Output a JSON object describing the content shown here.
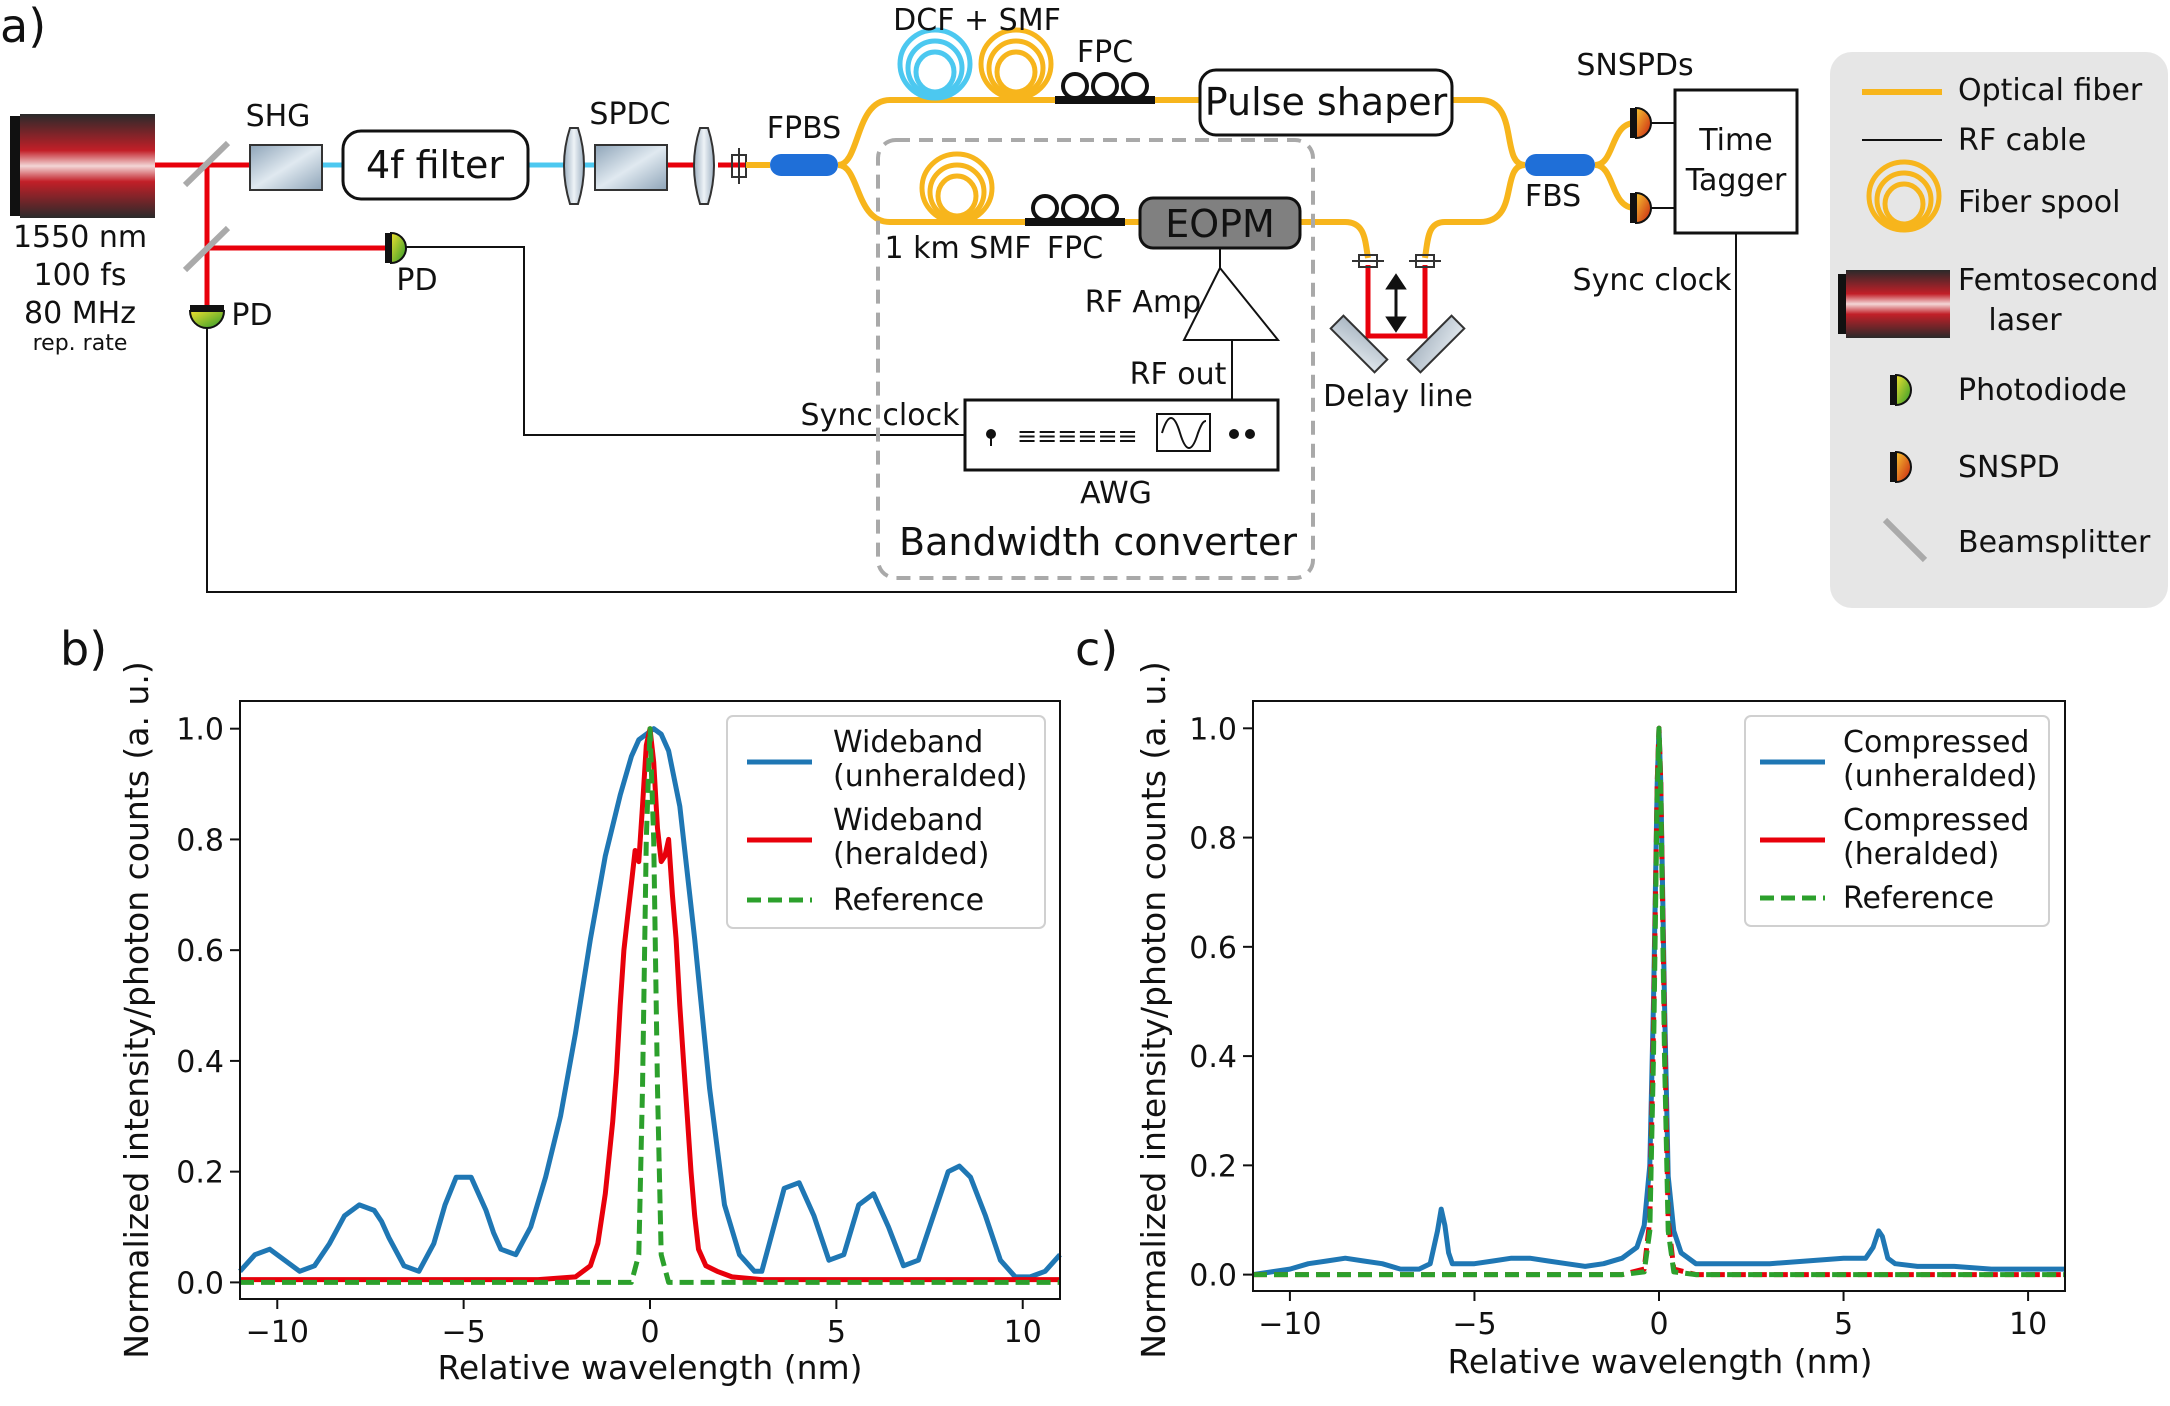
{
  "panel_a": {
    "letter": "a)",
    "laser_specs": [
      "1550 nm",
      "100 fs",
      "80 MHz"
    ],
    "rep_rate": "rep. rate",
    "shg": "SHG",
    "filter4f": "4f filter",
    "spdc": "SPDC",
    "fpbs": "FPBS",
    "pd1": "PD",
    "pd2": "PD",
    "dcf_smf": "DCF + SMF",
    "fpc_top": "FPC",
    "pulse_shaper": "Pulse shaper",
    "km_smf": "1 km SMF",
    "fpc_bottom": "FPC",
    "eopm": "EOPM",
    "rf_amp": "RF Amp",
    "rf_out": "RF out",
    "sync_clock_awg": "Sync clock",
    "awg": "AWG",
    "awg_display": "≡≡≡≡≡≡",
    "bandwidth_converter": "Bandwidth converter",
    "delay_line": "Delay line",
    "fbs": "FBS",
    "snspds": "SNSPDs",
    "time_tagger": [
      "Time",
      "Tagger"
    ],
    "sync_clock_tt": "Sync clock",
    "legend": {
      "optical_fiber": "Optical fiber",
      "rf_cable": "RF cable",
      "fiber_spool": "Fiber spool",
      "femtosecond_laser": [
        "Femtosecond",
        "laser"
      ],
      "photodiode": "Photodiode",
      "snspd": "SNSPD",
      "beamsplitter": "Beamsplitter"
    },
    "colors": {
      "fiber": "#f7b51c",
      "laser_beam": "#e8000b",
      "blue_beam": "#4cc8f0",
      "rf": "#000000",
      "legend_bg": "#e6e6e6",
      "dashed_box": "#a9a9a9",
      "eopm_fill": "#808080"
    }
  },
  "chart_data": [
    {
      "type": "line",
      "panel": "b)",
      "xlabel": "Relative wavelength (nm)",
      "ylabel": "Normalized intensity/photon counts (a. u.)",
      "xlim": [
        -11,
        11
      ],
      "ylim": [
        -0.03,
        1.05
      ],
      "xticks": [
        -10,
        -5,
        0,
        5,
        10
      ],
      "xtick_labels": [
        "−10",
        "−5",
        "0",
        "5",
        "10"
      ],
      "yticks": [
        0.0,
        0.2,
        0.4,
        0.6,
        0.8,
        1.0
      ],
      "ytick_labels": [
        "0.0",
        "0.2",
        "0.4",
        "0.6",
        "0.8",
        "1.0"
      ],
      "grid": false,
      "legend_position": "top-right",
      "series": [
        {
          "name": "Wideband\n(unheralded)",
          "color": "#1f77b4",
          "dash": "solid",
          "x": [
            -11,
            -10.6,
            -10.2,
            -9.8,
            -9.4,
            -9.0,
            -8.6,
            -8.2,
            -7.8,
            -7.4,
            -7.2,
            -7.0,
            -6.6,
            -6.2,
            -5.8,
            -5.5,
            -5.2,
            -4.8,
            -4.4,
            -4.2,
            -4.0,
            -3.6,
            -3.2,
            -2.8,
            -2.4,
            -2.0,
            -1.6,
            -1.2,
            -0.8,
            -0.5,
            -0.3,
            -0.1,
            0.1,
            0.3,
            0.5,
            0.8,
            1.2,
            1.6,
            2.0,
            2.4,
            2.8,
            3.0,
            3.2,
            3.6,
            4.0,
            4.4,
            4.8,
            5.2,
            5.6,
            6.0,
            6.4,
            6.8,
            7.2,
            7.6,
            8.0,
            8.3,
            8.6,
            9.0,
            9.4,
            9.8,
            10.2,
            10.6,
            11.0
          ],
          "y": [
            0.02,
            0.05,
            0.06,
            0.04,
            0.02,
            0.03,
            0.07,
            0.12,
            0.14,
            0.13,
            0.11,
            0.08,
            0.03,
            0.02,
            0.07,
            0.14,
            0.19,
            0.19,
            0.13,
            0.09,
            0.06,
            0.05,
            0.1,
            0.19,
            0.3,
            0.45,
            0.62,
            0.77,
            0.88,
            0.95,
            0.98,
            0.99,
            1.0,
            0.99,
            0.96,
            0.86,
            0.62,
            0.35,
            0.14,
            0.05,
            0.02,
            0.02,
            0.07,
            0.17,
            0.18,
            0.12,
            0.04,
            0.05,
            0.14,
            0.16,
            0.1,
            0.03,
            0.04,
            0.12,
            0.2,
            0.21,
            0.19,
            0.12,
            0.04,
            0.01,
            0.01,
            0.02,
            0.05
          ]
        },
        {
          "name": "Wideband\n(heralded)",
          "color": "#e8000b",
          "dash": "solid",
          "x": [
            -11,
            -8,
            -5,
            -3,
            -2.0,
            -1.6,
            -1.4,
            -1.2,
            -1.0,
            -0.9,
            -0.8,
            -0.7,
            -0.6,
            -0.5,
            -0.4,
            -0.3,
            -0.2,
            -0.1,
            0.0,
            0.1,
            0.2,
            0.3,
            0.4,
            0.5,
            0.6,
            0.7,
            0.8,
            0.9,
            1.0,
            1.1,
            1.2,
            1.3,
            1.5,
            1.8,
            2.2,
            3.0,
            5,
            8,
            11
          ],
          "y": [
            0.005,
            0.005,
            0.005,
            0.005,
            0.01,
            0.03,
            0.07,
            0.16,
            0.29,
            0.38,
            0.5,
            0.6,
            0.66,
            0.72,
            0.78,
            0.76,
            0.86,
            0.97,
            1.0,
            0.94,
            0.82,
            0.76,
            0.77,
            0.8,
            0.7,
            0.62,
            0.5,
            0.4,
            0.3,
            0.2,
            0.12,
            0.06,
            0.03,
            0.02,
            0.01,
            0.005,
            0.005,
            0.005,
            0.005
          ]
        },
        {
          "name": "Reference",
          "color": "#2ca02c",
          "dash": "dashed",
          "x": [
            -11,
            -1.0,
            -0.5,
            -0.3,
            -0.2,
            -0.1,
            0.0,
            0.1,
            0.2,
            0.3,
            0.5,
            1.0,
            11
          ],
          "y": [
            0.0,
            0.0,
            0.0,
            0.05,
            0.35,
            0.8,
            1.0,
            0.8,
            0.35,
            0.05,
            0.0,
            0.0,
            0.0
          ]
        }
      ],
      "legend_entries": [
        "Wideband",
        "(unheralded)",
        "Wideband",
        "(heralded)",
        "Reference"
      ]
    },
    {
      "type": "line",
      "panel": "c)",
      "xlabel": "Relative wavelength (nm)",
      "ylabel": "Normalized intensity/photon counts (a. u.)",
      "xlim": [
        -11,
        11
      ],
      "ylim": [
        -0.03,
        1.05
      ],
      "xticks": [
        -10,
        -5,
        0,
        5,
        10
      ],
      "xtick_labels": [
        "−10",
        "−5",
        "0",
        "5",
        "10"
      ],
      "yticks": [
        0.0,
        0.2,
        0.4,
        0.6,
        0.8,
        1.0
      ],
      "ytick_labels": [
        "0.0",
        "0.2",
        "0.4",
        "0.6",
        "0.8",
        "1.0"
      ],
      "grid": false,
      "legend_position": "top-right",
      "series": [
        {
          "name": "Compressed\n(unheralded)",
          "color": "#1f77b4",
          "dash": "solid",
          "x": [
            -11,
            -10,
            -9.5,
            -9.0,
            -8.5,
            -8.0,
            -7.5,
            -7.0,
            -6.5,
            -6.2,
            -6.0,
            -5.9,
            -5.8,
            -5.7,
            -5.6,
            -5.4,
            -5.0,
            -4.5,
            -4.0,
            -3.5,
            -3.0,
            -2.5,
            -2.0,
            -1.5,
            -1.0,
            -0.6,
            -0.4,
            -0.25,
            -0.15,
            -0.05,
            0.0,
            0.05,
            0.15,
            0.25,
            0.4,
            0.6,
            1.0,
            2.0,
            3.0,
            4.0,
            5.0,
            5.6,
            5.8,
            5.95,
            6.05,
            6.2,
            6.4,
            7.0,
            8.0,
            9.0,
            10.0,
            11.0
          ],
          "y": [
            0.0,
            0.01,
            0.02,
            0.025,
            0.03,
            0.025,
            0.02,
            0.01,
            0.01,
            0.02,
            0.08,
            0.12,
            0.09,
            0.04,
            0.02,
            0.02,
            0.02,
            0.025,
            0.03,
            0.03,
            0.025,
            0.02,
            0.015,
            0.02,
            0.03,
            0.05,
            0.09,
            0.2,
            0.5,
            0.9,
            1.0,
            0.9,
            0.5,
            0.18,
            0.08,
            0.04,
            0.02,
            0.02,
            0.02,
            0.025,
            0.03,
            0.03,
            0.05,
            0.08,
            0.07,
            0.03,
            0.02,
            0.015,
            0.015,
            0.01,
            0.01,
            0.01
          ]
        },
        {
          "name": "Compressed\n(heralded)",
          "color": "#e8000b",
          "dash": "dashed",
          "x": [
            -11,
            -1.0,
            -0.4,
            -0.25,
            -0.15,
            -0.05,
            0.0,
            0.05,
            0.15,
            0.25,
            0.4,
            1.0,
            11
          ],
          "y": [
            0.0,
            0.0,
            0.01,
            0.1,
            0.45,
            0.9,
            1.0,
            0.9,
            0.45,
            0.1,
            0.01,
            0.0,
            0.0
          ]
        },
        {
          "name": "Reference",
          "color": "#2ca02c",
          "dash": "dashed",
          "x": [
            -11,
            -1.0,
            -0.4,
            -0.25,
            -0.15,
            -0.05,
            0.0,
            0.05,
            0.15,
            0.25,
            0.4,
            1.0,
            11
          ],
          "y": [
            0.0,
            0.0,
            0.005,
            0.08,
            0.4,
            0.88,
            1.0,
            0.88,
            0.4,
            0.08,
            0.005,
            0.0,
            0.0
          ]
        }
      ],
      "legend_entries": [
        "Compressed",
        "(unheralded)",
        "Compressed",
        "(heralded)",
        "Reference"
      ]
    }
  ]
}
